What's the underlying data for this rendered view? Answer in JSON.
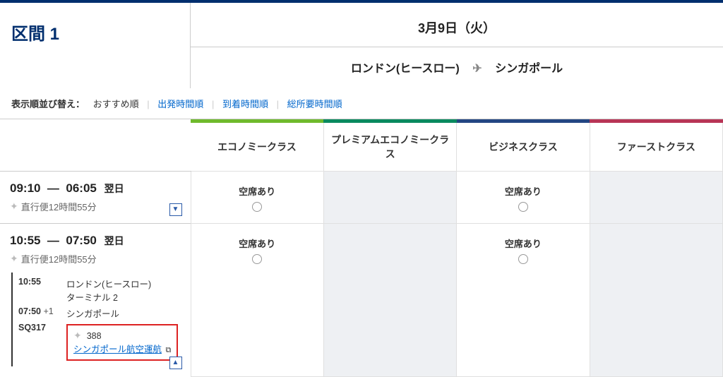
{
  "segment": {
    "label": "区間 1",
    "date": "3月9日（火）",
    "from": "ロンドン(ヒースロー)",
    "to": "シンガポール"
  },
  "sort": {
    "label": "表示順並び替え：",
    "current": "おすすめ順",
    "opt_dep": "出発時間順",
    "opt_arr": "到着時間順",
    "opt_dur": "総所要時間順"
  },
  "class_headers": {
    "economy": "エコノミークラス",
    "premium": "プレミアムエコノミークラス",
    "business": "ビジネスクラス",
    "first": "ファーストクラス"
  },
  "avail_text": "空席あり",
  "next_day": "翌日",
  "flights": [
    {
      "dep": "09:10",
      "arr": "06:05",
      "meta": "直行便12時間55分",
      "expand_state": "down",
      "fares": {
        "economy": true,
        "premium": false,
        "business": true,
        "first": false
      }
    },
    {
      "dep": "10:55",
      "arr": "07:50",
      "meta": "直行便12時間55分",
      "expand_state": "up",
      "fares": {
        "economy": true,
        "premium": false,
        "business": true,
        "first": false
      },
      "detail": {
        "dep_time": "10:55",
        "dep_place": "ロンドン(ヒースロー)",
        "dep_term": "ターミナル 2",
        "arr_time": "07:50",
        "arr_plus": "+1",
        "arr_place": "シンガポール",
        "flight_no": "SQ317",
        "aircraft": "388",
        "operator": "シンガポール航空運航"
      }
    }
  ],
  "colors": {
    "economy_accent": "#6fba2c",
    "premium_accent": "#0a8a5f",
    "business_accent": "#234683",
    "first_accent": "#b83556",
    "link": "#0066cc",
    "brand": "#002e6e",
    "highlight_box": "#d22"
  }
}
